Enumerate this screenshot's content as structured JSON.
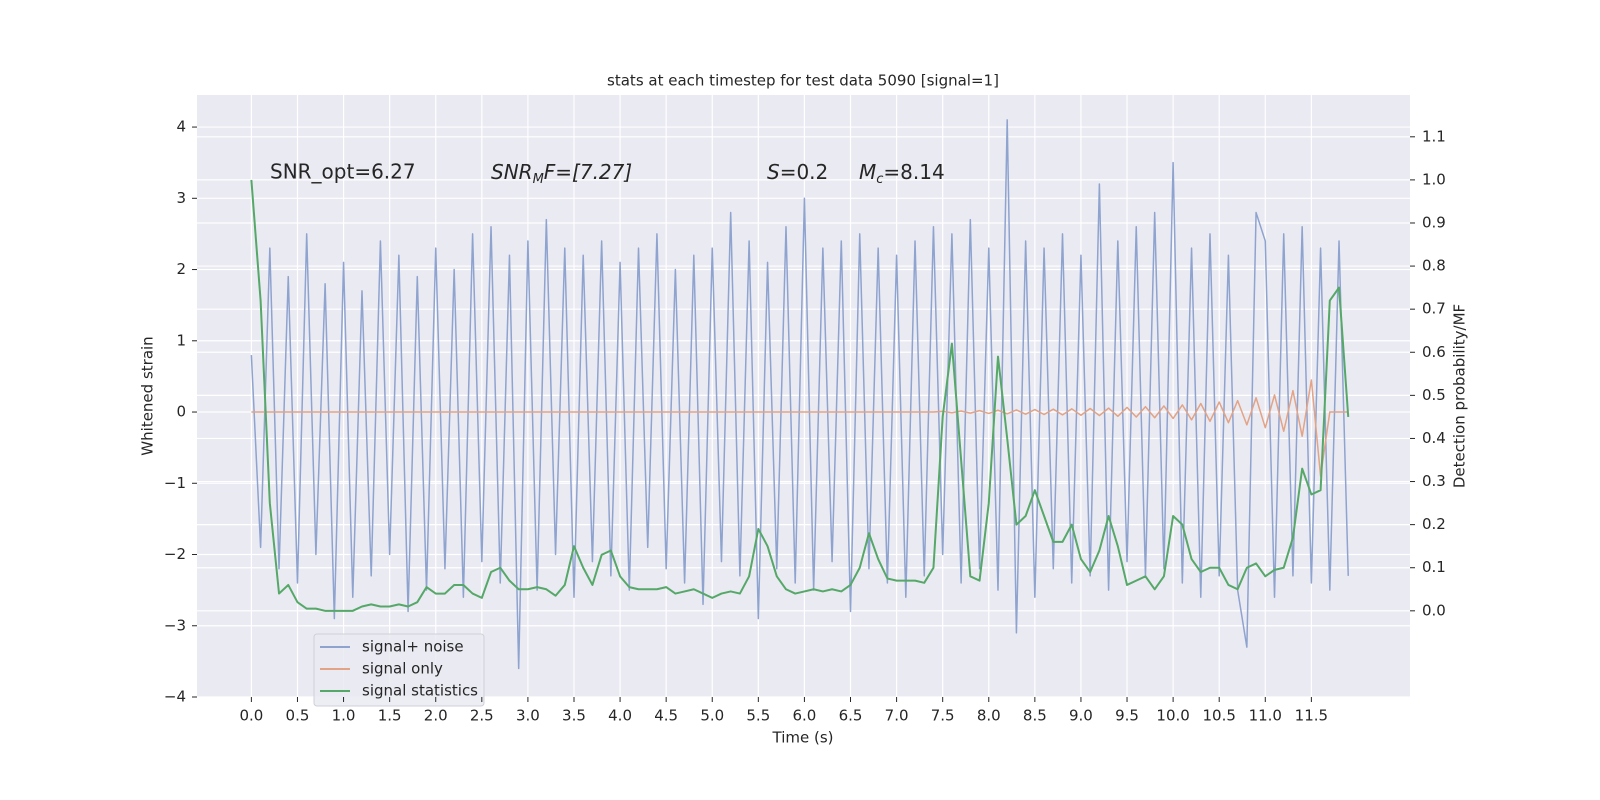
{
  "chart_data": {
    "type": "line",
    "title": "stats at each timestep for test data 5090 [signal=1]",
    "xlabel": "Time (s)",
    "ylabel": "Whitened strain",
    "y2label": "Detection probability/MF",
    "annotations": [
      {
        "text": "SNR_opt=6.27"
      },
      {
        "symbol": "SNR",
        "subscript": "M",
        "rest": "F=[7.27]"
      },
      {
        "symbol": "S",
        "rest": "=0.2"
      },
      {
        "symbol": "M",
        "subscript": "c",
        "rest": "=8.14"
      }
    ],
    "grid": true,
    "legend": "lower left",
    "xlim": [
      -0.59,
      12.57
    ],
    "ylim": [
      -4,
      4.45
    ],
    "y2lim": [
      -0.2,
      1.197
    ],
    "xticks": [
      {
        "value": 0,
        "label": "0.0"
      },
      0.5,
      {
        "value": 1,
        "label": "1.0"
      },
      1.5,
      {
        "value": 2,
        "label": "2.0"
      },
      2.5,
      {
        "value": 3,
        "label": "3.0"
      },
      3.5,
      {
        "value": 4,
        "label": "4.0"
      },
      4.5,
      {
        "value": 5,
        "label": "5.0"
      },
      5.5,
      {
        "value": 6,
        "label": "6.0"
      },
      6.5,
      {
        "value": 7,
        "label": "7.0"
      },
      7.5,
      {
        "value": 8,
        "label": "8.0"
      },
      8.5,
      {
        "value": 9,
        "label": "9.0"
      },
      9.5,
      {
        "value": 10,
        "label": "10.0"
      },
      10.5,
      {
        "value": 11,
        "label": "11.0"
      },
      11.5
    ],
    "yticks": [
      {
        "value": -4,
        "label": "−4"
      },
      {
        "value": -3,
        "label": "−3"
      },
      {
        "value": -2,
        "label": "−2"
      },
      {
        "value": -1,
        "label": "−1"
      },
      0,
      1,
      2,
      3,
      4
    ],
    "y2ticks": [
      {
        "value": 0,
        "label": "0.0"
      },
      0.1,
      0.2,
      0.3,
      0.4,
      0.5,
      0.6,
      0.7,
      0.8,
      0.9,
      {
        "value": 1,
        "label": "1.0"
      },
      1.1
    ],
    "x": [
      0,
      0.1,
      0.2,
      0.3,
      0.4,
      0.5,
      0.6,
      0.7,
      0.8,
      0.9,
      1,
      1.1,
      1.2,
      1.3,
      1.4,
      1.5,
      1.6,
      1.7,
      1.8,
      1.9,
      2,
      2.1,
      2.2,
      2.3,
      2.4,
      2.5,
      2.6,
      2.7,
      2.8,
      2.9,
      3,
      3.1,
      3.2,
      3.3,
      3.4,
      3.5,
      3.6,
      3.7,
      3.8,
      3.9,
      4,
      4.1,
      4.2,
      4.3,
      4.4,
      4.5,
      4.6,
      4.7,
      4.8,
      4.9,
      5,
      5.1,
      5.2,
      5.3,
      5.4,
      5.5,
      5.6,
      5.7,
      5.8,
      5.9,
      6,
      6.1,
      6.2,
      6.3,
      6.4,
      6.5,
      6.6,
      6.7,
      6.8,
      6.9,
      7,
      7.1,
      7.2,
      7.3,
      7.4,
      7.5,
      7.6,
      7.7,
      7.8,
      7.9,
      8,
      8.1,
      8.2,
      8.3,
      8.4,
      8.5,
      8.6,
      8.7,
      8.8,
      8.9,
      9,
      9.1,
      9.2,
      9.3,
      9.4,
      9.5,
      9.6,
      9.7,
      9.8,
      9.9,
      10,
      10.1,
      10.2,
      10.3,
      10.4,
      10.5,
      10.6,
      10.7,
      10.8,
      10.9,
      11,
      11.1,
      11.2,
      11.3,
      11.4,
      11.5,
      11.6,
      11.7,
      11.8,
      11.9
    ],
    "series": [
      {
        "name": "signal+ noise",
        "color": "#8fa3cf",
        "axis": "y",
        "values": [
          0.8,
          -1.9,
          2.3,
          -2.2,
          1.9,
          -2.4,
          2.5,
          -2.0,
          1.8,
          -2.9,
          2.1,
          -2.6,
          1.7,
          -2.3,
          2.4,
          -2.0,
          2.2,
          -2.8,
          1.9,
          -2.5,
          2.3,
          -2.2,
          2.0,
          -2.6,
          2.5,
          -2.1,
          2.6,
          -2.4,
          2.2,
          -3.6,
          2.4,
          -2.5,
          2.7,
          -2.0,
          2.3,
          -2.6,
          2.2,
          -2.1,
          2.4,
          -2.3,
          2.1,
          -2.5,
          2.3,
          -1.9,
          2.5,
          -2.2,
          2.0,
          -2.4,
          2.2,
          -2.7,
          2.3,
          -2.1,
          2.8,
          -2.3,
          2.4,
          -2.9,
          2.1,
          -2.2,
          2.6,
          -2.4,
          3.0,
          -2.5,
          2.3,
          -2.1,
          2.4,
          -2.8,
          2.5,
          -2.2,
          2.3,
          -2.4,
          2.2,
          -2.6,
          2.4,
          -2.3,
          2.6,
          -2.0,
          2.5,
          -2.4,
          2.7,
          -2.2,
          2.3,
          -2.5,
          4.1,
          -3.1,
          2.4,
          -2.6,
          2.3,
          -2.2,
          2.5,
          -2.4,
          2.2,
          -2.3,
          3.2,
          -2.5,
          2.4,
          -2.1,
          2.6,
          -2.3,
          2.8,
          -2.2,
          3.5,
          -2.4,
          2.3,
          -2.6,
          2.5,
          -2.3,
          2.2,
          -2.5,
          -3.3,
          2.8,
          2.4,
          -2.6,
          2.5,
          -2.3,
          2.6,
          -2.4,
          2.3,
          -2.5,
          2.4,
          -2.3
        ]
      },
      {
        "name": "signal only",
        "color": "#e2a386",
        "axis": "y",
        "values": [
          0,
          0,
          0,
          0,
          0,
          0,
          0,
          0,
          0,
          0,
          0,
          0,
          0,
          0,
          0,
          0,
          0,
          0,
          0,
          0,
          0,
          0,
          0,
          0,
          0,
          0,
          0,
          0,
          0,
          0,
          0,
          0,
          0,
          0,
          0,
          0,
          0,
          0,
          0,
          0,
          0,
          0,
          0,
          0,
          0,
          0,
          0,
          0,
          0,
          0,
          0,
          0,
          0,
          0,
          0,
          0,
          0,
          0,
          0,
          0,
          0,
          0,
          0,
          0,
          0,
          0,
          0,
          0,
          0,
          0,
          0,
          0,
          0,
          0,
          0,
          0.01,
          -0.01,
          0.015,
          -0.015,
          0.02,
          -0.02,
          0.025,
          -0.025,
          0.03,
          -0.03,
          0.035,
          -0.035,
          0.04,
          -0.04,
          0.045,
          -0.045,
          0.05,
          -0.05,
          0.055,
          -0.06,
          0.065,
          -0.07,
          0.075,
          -0.08,
          0.085,
          -0.09,
          0.1,
          -0.11,
          0.12,
          -0.13,
          0.14,
          -0.15,
          0.16,
          -0.18,
          0.2,
          -0.22,
          0.24,
          -0.27,
          0.3,
          -0.34,
          0.45,
          -0.9,
          0,
          0,
          0
        ]
      },
      {
        "name": "signal statistics",
        "color": "#55a868",
        "axis": "y2",
        "values": [
          1.0,
          0.72,
          0.25,
          0.04,
          0.06,
          0.02,
          0.005,
          0.005,
          0.0,
          0.0,
          0.0,
          0.0,
          0.01,
          0.015,
          0.01,
          0.01,
          0.015,
          0.01,
          0.02,
          0.055,
          0.04,
          0.04,
          0.06,
          0.06,
          0.04,
          0.03,
          0.09,
          0.1,
          0.07,
          0.05,
          0.05,
          0.055,
          0.05,
          0.035,
          0.06,
          0.15,
          0.1,
          0.06,
          0.13,
          0.14,
          0.08,
          0.055,
          0.05,
          0.05,
          0.05,
          0.055,
          0.04,
          0.045,
          0.05,
          0.04,
          0.03,
          0.04,
          0.045,
          0.04,
          0.08,
          0.19,
          0.15,
          0.08,
          0.05,
          0.04,
          0.045,
          0.05,
          0.045,
          0.05,
          0.045,
          0.06,
          0.1,
          0.18,
          0.12,
          0.075,
          0.07,
          0.07,
          0.07,
          0.065,
          0.1,
          0.45,
          0.62,
          0.35,
          0.08,
          0.07,
          0.25,
          0.59,
          0.4,
          0.2,
          0.22,
          0.28,
          0.22,
          0.16,
          0.16,
          0.2,
          0.12,
          0.09,
          0.14,
          0.22,
          0.15,
          0.06,
          0.07,
          0.08,
          0.05,
          0.08,
          0.22,
          0.2,
          0.12,
          0.09,
          0.1,
          0.1,
          0.06,
          0.05,
          0.1,
          0.11,
          0.08,
          0.095,
          0.1,
          0.17,
          0.33,
          0.27,
          0.28,
          0.72,
          0.75,
          0.45
        ]
      }
    ]
  }
}
